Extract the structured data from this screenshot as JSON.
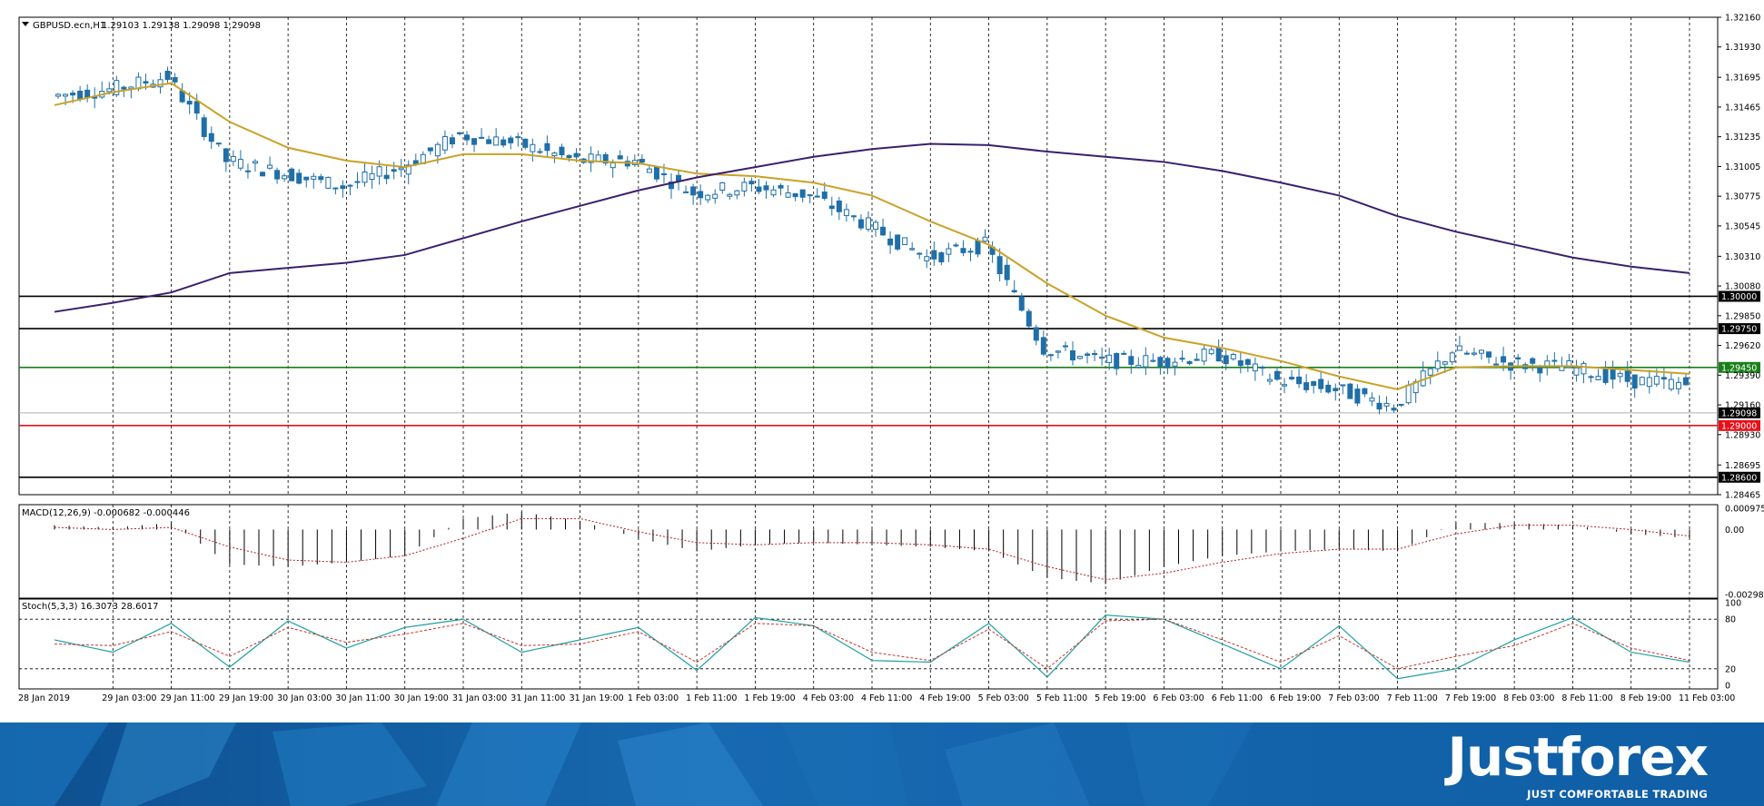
{
  "header": {
    "symbol_label": "GBPUSD.ecn,H1",
    "ohlc_label": "1.29103 1.29138 1.29098 1.29098",
    "macd_label": "MACD(12,26,9) -0.000682 -0.000446",
    "stoch_label": "Stoch(5,3,3) 16.3073 28.6017"
  },
  "price_axis": {
    "ticks": [
      "1.32160",
      "1.31930",
      "1.31695",
      "1.31465",
      "1.31235",
      "1.31005",
      "1.30775",
      "1.30545",
      "1.30310",
      "1.30080",
      "1.29850",
      "1.29620",
      "1.29390",
      "1.29160",
      "1.28930",
      "1.28695",
      "1.28465"
    ]
  },
  "macd_axis": {
    "ticks": [
      "0.000975",
      "0.00",
      "-0.00298"
    ]
  },
  "stoch_axis": {
    "ticks": [
      "100",
      "80",
      "20",
      "0"
    ]
  },
  "time_axis": {
    "labels": [
      "28 Jan 2019",
      "29 Jan 03:00",
      "29 Jan 11:00",
      "29 Jan 19:00",
      "30 Jan 03:00",
      "30 Jan 11:00",
      "30 Jan 19:00",
      "31 Jan 03:00",
      "31 Jan 11:00",
      "31 Jan 19:00",
      "1 Feb 03:00",
      "1 Feb 11:00",
      "1 Feb 19:00",
      "4 Feb 03:00",
      "4 Feb 11:00",
      "4 Feb 19:00",
      "5 Feb 03:00",
      "5 Feb 11:00",
      "5 Feb 19:00",
      "6 Feb 03:00",
      "6 Feb 11:00",
      "6 Feb 19:00",
      "7 Feb 03:00",
      "7 Feb 11:00",
      "7 Feb 19:00",
      "8 Feb 03:00",
      "8 Feb 11:00",
      "8 Feb 19:00",
      "11 Feb 03:00"
    ]
  },
  "levels": [
    {
      "value": 1.3,
      "label": "1.30000",
      "color": "#000000"
    },
    {
      "value": 1.2975,
      "label": "1.29750",
      "color": "#000000"
    },
    {
      "value": 1.2945,
      "label": "1.29450",
      "color": "#1a7f1a"
    },
    {
      "value": 1.29098,
      "label": "1.29098",
      "color": "#000000"
    },
    {
      "value": 1.29,
      "label": "1.29000",
      "color": "#e8101a"
    },
    {
      "value": 1.286,
      "label": "1.28600",
      "color": "#000000"
    }
  ],
  "colors": {
    "candle": "#1f6fa8",
    "ma_fast": "#c9a227",
    "ma_slow": "#3c1f6e",
    "macd_hist": "#000000",
    "macd_signal": "#b22222",
    "stoch_main": "#1fa0a0",
    "stoch_signal": "#c0392b"
  },
  "chart_data": {
    "type": "line",
    "x": [
      "28 Jan 2019",
      "29 Jan 03:00",
      "29 Jan 11:00",
      "29 Jan 19:00",
      "30 Jan 03:00",
      "30 Jan 11:00",
      "30 Jan 19:00",
      "31 Jan 03:00",
      "31 Jan 11:00",
      "31 Jan 19:00",
      "1 Feb 03:00",
      "1 Feb 11:00",
      "1 Feb 19:00",
      "4 Feb 03:00",
      "4 Feb 11:00",
      "4 Feb 19:00",
      "5 Feb 03:00",
      "5 Feb 11:00",
      "5 Feb 19:00",
      "6 Feb 03:00",
      "6 Feb 11:00",
      "6 Feb 19:00",
      "7 Feb 03:00",
      "7 Feb 11:00",
      "7 Feb 19:00",
      "8 Feb 03:00",
      "8 Feb 11:00",
      "8 Feb 19:00",
      "11 Feb 03:00"
    ],
    "series": [
      {
        "values": [
          1.3155,
          1.316,
          1.317,
          1.3105,
          1.3095,
          1.3085,
          1.31,
          1.3125,
          1.3118,
          1.3105,
          1.3105,
          1.308,
          1.3085,
          1.3078,
          1.3055,
          1.303,
          1.304,
          1.296,
          1.295,
          1.295,
          1.2955,
          1.2935,
          1.2928,
          1.2915,
          1.2958,
          1.2948,
          1.2945,
          1.2935,
          1.2932
        ]
      },
      {
        "values": [
          1.3148,
          1.3158,
          1.3165,
          1.3135,
          1.3115,
          1.3105,
          1.31,
          1.311,
          1.311,
          1.3105,
          1.3103,
          1.3095,
          1.3093,
          1.3088,
          1.3078,
          1.3058,
          1.304,
          1.301,
          1.2985,
          1.2968,
          1.296,
          1.295,
          1.2938,
          1.2928,
          1.2945,
          1.2946,
          1.2946,
          1.2943,
          1.294
        ]
      },
      {
        "values": [
          1.2988,
          1.2995,
          1.3003,
          1.3018,
          1.3022,
          1.3026,
          1.3032,
          1.3045,
          1.3058,
          1.307,
          1.3082,
          1.3092,
          1.31,
          1.3108,
          1.3114,
          1.3118,
          1.3117,
          1.3112,
          1.3108,
          1.3104,
          1.3097,
          1.3088,
          1.3078,
          1.3062,
          1.305,
          1.304,
          1.303,
          1.3023,
          1.3018
        ]
      }
    ],
    "macd": {
      "range": [
        -0.00298,
        0.000975
      ],
      "hist": [
        0.0002,
        0.0001,
        0.0003,
        -0.0016,
        -0.0017,
        -0.0015,
        -0.0012,
        0.0005,
        0.0008,
        0.0004,
        -0.0004,
        -0.001,
        -0.0007,
        -0.0006,
        -0.0007,
        -0.0008,
        -0.001,
        -0.0022,
        -0.0025,
        -0.0017,
        -0.0012,
        -0.001,
        -0.0009,
        -0.001,
        0.0003,
        0.0003,
        0.0002,
        -0.0002,
        -0.0004
      ],
      "signal": [
        0.0001,
        0.0,
        0.0001,
        -0.0008,
        -0.0014,
        -0.0015,
        -0.0012,
        -0.0004,
        0.0005,
        0.0005,
        -0.0001,
        -0.0006,
        -0.0007,
        -0.0006,
        -0.0006,
        -0.0007,
        -0.0009,
        -0.0017,
        -0.0023,
        -0.002,
        -0.0015,
        -0.0011,
        -0.0009,
        -0.0009,
        -0.0002,
        0.0002,
        0.0002,
        0.0,
        -0.0003
      ]
    },
    "stochastic": {
      "range": [
        0,
        100
      ],
      "levels": [
        80,
        20
      ],
      "main": [
        55,
        40,
        75,
        22,
        78,
        45,
        70,
        80,
        40,
        55,
        70,
        18,
        82,
        72,
        30,
        28,
        75,
        10,
        85,
        80,
        50,
        20,
        72,
        8,
        20,
        55,
        82,
        40,
        28
      ],
      "signal": [
        50,
        48,
        65,
        35,
        70,
        52,
        62,
        75,
        48,
        50,
        65,
        28,
        75,
        72,
        40,
        30,
        68,
        20,
        78,
        80,
        55,
        28,
        60,
        20,
        35,
        48,
        75,
        45,
        30
      ]
    }
  },
  "branding": {
    "name": "Justforex",
    "tagline": "JUST COMFORTABLE TRADING"
  }
}
